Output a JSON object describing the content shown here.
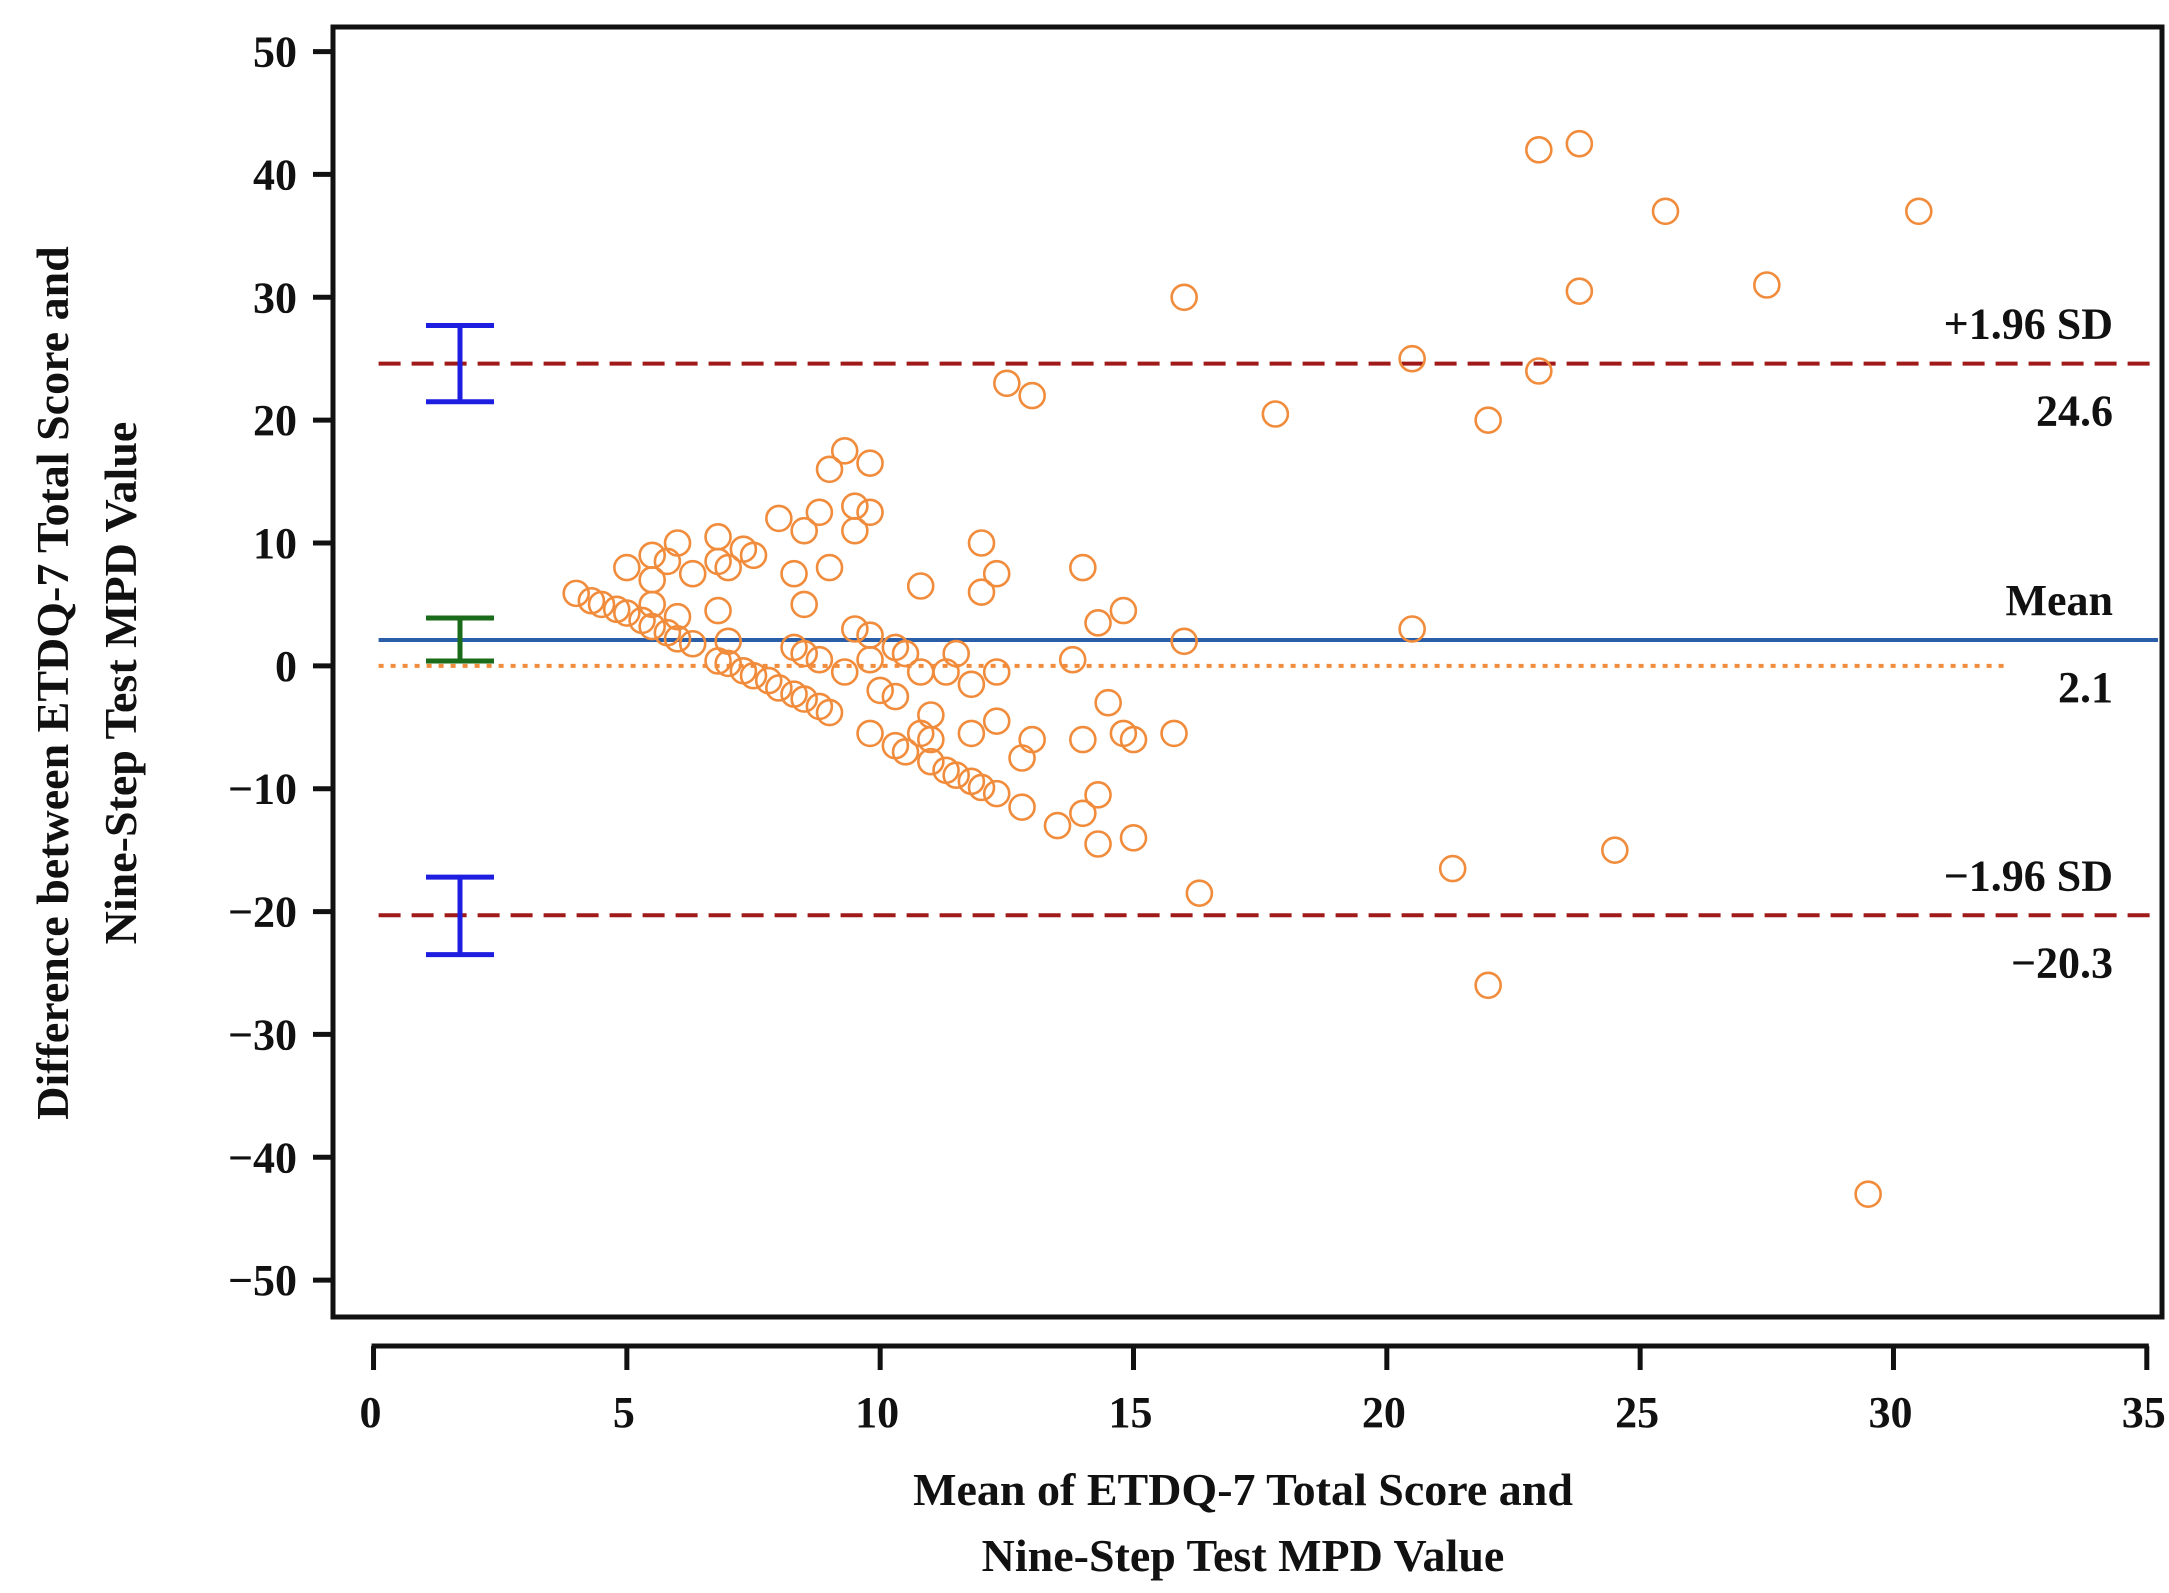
{
  "chart_data": {
    "type": "scatter",
    "subtype": "bland-altman",
    "title": "",
    "xlabel": [
      "Mean of ETDQ-7 Total Score and",
      "Nine-Step Test MPD Value"
    ],
    "ylabel": [
      "Difference between ETDQ-7 Total Score and",
      "Nine-Step Test MPD Value"
    ],
    "xlim": [
      -0.8,
      35.3
    ],
    "ylim": [
      -53,
      52
    ],
    "xticks": [
      0,
      5,
      10,
      15,
      20,
      25,
      30,
      35
    ],
    "xtick_labels": [
      "0",
      "5",
      "10",
      "15",
      "20",
      "25",
      "30",
      "35"
    ],
    "yticks": [
      50,
      40,
      30,
      20,
      10,
      0,
      -10,
      -20,
      -30,
      -40,
      -50
    ],
    "ytick_labels": [
      "50",
      "40",
      "30",
      "20",
      "10",
      "0",
      "−10",
      "−20",
      "−30",
      "−40",
      "−50"
    ],
    "grid": false,
    "marker_color": "#f08c3c",
    "reference_lines": [
      {
        "name": "upper-loa",
        "value": 24.6,
        "title": "+1.96 SD",
        "value_label": "24.6",
        "color": "#a01a1a",
        "style": "dashed"
      },
      {
        "name": "mean",
        "value": 2.1,
        "title": "Mean",
        "value_label": "2.1",
        "color": "#2a5ea8",
        "style": "solid"
      },
      {
        "name": "zero",
        "value": 0,
        "title": "",
        "value_label": "",
        "color": "#f08c3c",
        "style": "dotted"
      },
      {
        "name": "lower-loa",
        "value": -20.3,
        "title": "−1.96 SD",
        "value_label": "−20.3",
        "color": "#a01a1a",
        "style": "dashed"
      }
    ],
    "confidence_intervals": [
      {
        "name": "upper-loa-ci",
        "low": 21.5,
        "high": 27.7,
        "color": "#1e1ee0"
      },
      {
        "name": "mean-ci",
        "low": 0.4,
        "high": 3.9,
        "color": "#1a6b1a"
      },
      {
        "name": "lower-loa-ci",
        "low": -23.5,
        "high": -17.2,
        "color": "#1e1ee0"
      }
    ],
    "points": [
      [
        4.0,
        5.9
      ],
      [
        4.3,
        5.3
      ],
      [
        4.5,
        5.0
      ],
      [
        4.8,
        4.6
      ],
      [
        5.0,
        4.3
      ],
      [
        5.3,
        3.7
      ],
      [
        5.5,
        3.2
      ],
      [
        5.8,
        2.7
      ],
      [
        6.0,
        2.2
      ],
      [
        6.3,
        1.8
      ],
      [
        6.8,
        0.4
      ],
      [
        7.0,
        0.2
      ],
      [
        7.3,
        -0.4
      ],
      [
        7.5,
        -0.8
      ],
      [
        7.8,
        -1.2
      ],
      [
        8.0,
        -1.8
      ],
      [
        8.3,
        -2.3
      ],
      [
        8.5,
        -2.7
      ],
      [
        8.8,
        -3.3
      ],
      [
        9.0,
        -3.8
      ],
      [
        11.0,
        -7.8
      ],
      [
        11.3,
        -8.5
      ],
      [
        11.5,
        -8.9
      ],
      [
        11.8,
        -9.4
      ],
      [
        12.0,
        -9.9
      ],
      [
        12.3,
        -10.4
      ],
      [
        5.0,
        8.0
      ],
      [
        5.5,
        9.0
      ],
      [
        5.8,
        8.5
      ],
      [
        6.0,
        10.0
      ],
      [
        6.3,
        7.5
      ],
      [
        6.8,
        10.5
      ],
      [
        6.8,
        8.5
      ],
      [
        7.0,
        8.0
      ],
      [
        7.3,
        9.5
      ],
      [
        7.5,
        9.0
      ],
      [
        8.0,
        12.0
      ],
      [
        8.3,
        7.5
      ],
      [
        8.5,
        11.0
      ],
      [
        8.8,
        12.5
      ],
      [
        9.0,
        16.0
      ],
      [
        9.0,
        8.0
      ],
      [
        9.3,
        17.5
      ],
      [
        9.5,
        13.0
      ],
      [
        9.5,
        11.0
      ],
      [
        9.8,
        16.5
      ],
      [
        9.8,
        12.5
      ],
      [
        5.5,
        7.0
      ],
      [
        5.5,
        5.0
      ],
      [
        6.0,
        4.0
      ],
      [
        6.8,
        4.5
      ],
      [
        7.0,
        2.0
      ],
      [
        8.3,
        1.5
      ],
      [
        8.5,
        5.0
      ],
      [
        8.5,
        1.0
      ],
      [
        8.8,
        0.5
      ],
      [
        9.5,
        3.0
      ],
      [
        9.8,
        2.5
      ],
      [
        10.3,
        1.5
      ],
      [
        10.8,
        6.5
      ],
      [
        10.5,
        1.0
      ],
      [
        11.5,
        1.0
      ],
      [
        9.8,
        0.5
      ],
      [
        9.3,
        -0.5
      ],
      [
        10.0,
        -2.0
      ],
      [
        10.3,
        -2.5
      ],
      [
        10.8,
        -0.5
      ],
      [
        11.3,
        -0.5
      ],
      [
        11.8,
        -1.5
      ],
      [
        12.3,
        -0.5
      ],
      [
        9.8,
        -5.5
      ],
      [
        10.3,
        -6.5
      ],
      [
        10.8,
        -5.5
      ],
      [
        11.0,
        -4.0
      ],
      [
        11.0,
        -6.0
      ],
      [
        10.5,
        -7.0
      ],
      [
        11.8,
        -5.5
      ],
      [
        12.3,
        -4.5
      ],
      [
        12.8,
        -7.5
      ],
      [
        13.0,
        -6.0
      ],
      [
        12.8,
        -11.5
      ],
      [
        13.5,
        -13.0
      ],
      [
        14.0,
        -12.0
      ],
      [
        14.3,
        -10.5
      ],
      [
        14.3,
        -14.5
      ],
      [
        15.0,
        -14.0
      ],
      [
        14.0,
        -6.0
      ],
      [
        14.5,
        -3.0
      ],
      [
        14.8,
        -5.5
      ],
      [
        15.0,
        -6.0
      ],
      [
        15.8,
        -5.5
      ],
      [
        13.8,
        0.5
      ],
      [
        14.3,
        3.5
      ],
      [
        14.8,
        4.5
      ],
      [
        16.0,
        2.0
      ],
      [
        14.0,
        8.0
      ],
      [
        12.0,
        10.0
      ],
      [
        12.0,
        6.0
      ],
      [
        12.3,
        7.5
      ],
      [
        16.3,
        -18.5
      ],
      [
        12.5,
        23.0
      ],
      [
        13.0,
        22.0
      ],
      [
        16.0,
        30.0
      ],
      [
        17.8,
        20.5
      ],
      [
        20.5,
        25.0
      ],
      [
        20.5,
        3.0
      ],
      [
        21.3,
        -16.5
      ],
      [
        22.0,
        20.0
      ],
      [
        22.0,
        -26.0
      ],
      [
        23.0,
        42.0
      ],
      [
        23.8,
        42.5
      ],
      [
        23.0,
        24.0
      ],
      [
        23.8,
        30.5
      ],
      [
        24.5,
        -15.0
      ],
      [
        25.5,
        37.0
      ],
      [
        27.5,
        31.0
      ],
      [
        29.5,
        -43.0
      ],
      [
        30.5,
        37.0
      ]
    ]
  }
}
